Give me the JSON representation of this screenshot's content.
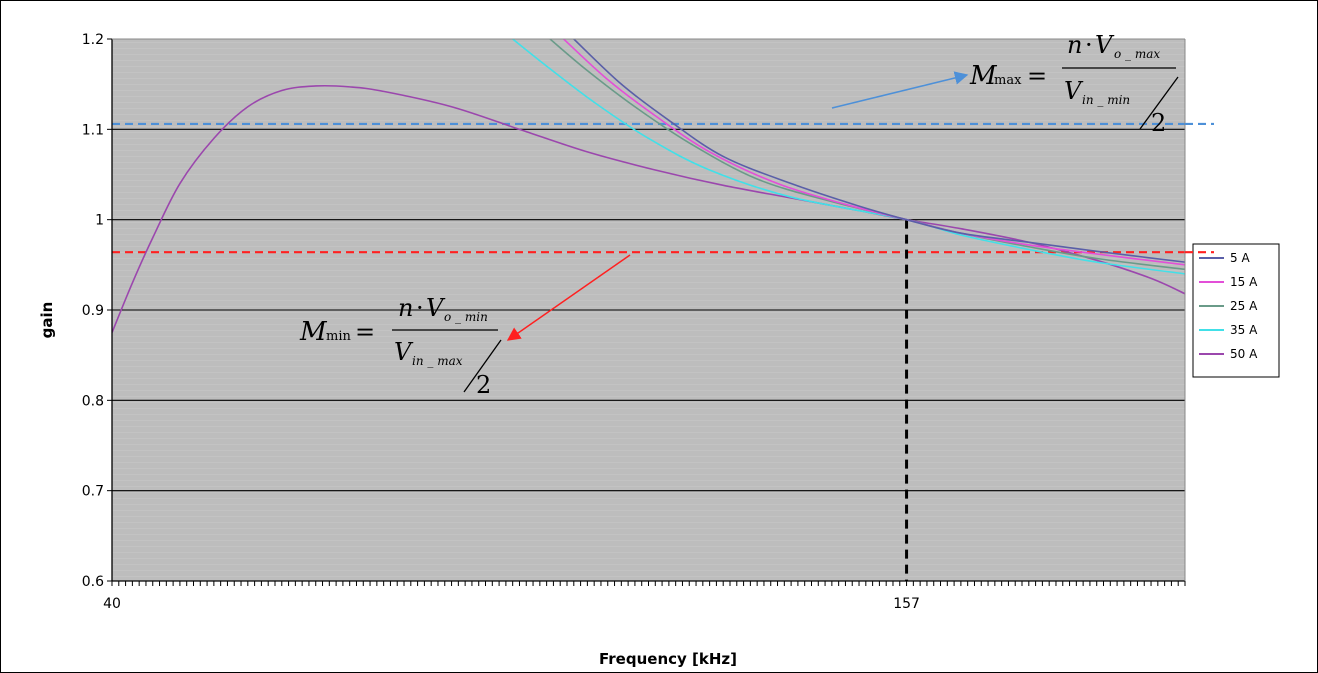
{
  "chart_data": {
    "type": "line",
    "xlabel": "Frequency [kHz]",
    "ylabel": "gain",
    "xlim": [
      40,
      198
    ],
    "ylim": [
      0.6,
      1.2
    ],
    "x_tick_labels": [
      {
        "value": 40,
        "label": "40"
      },
      {
        "value": 157,
        "label": "157"
      }
    ],
    "y_ticks": [
      0.6,
      0.7,
      0.8,
      0.9,
      1,
      1.1,
      1.2
    ],
    "y_tick_labels": [
      "0.6",
      "0.7",
      "0.8",
      "0.9",
      "1",
      "1.1",
      "1.2"
    ],
    "grid": true,
    "legend_position": "right",
    "series": [
      {
        "name": "5 A",
        "color": "#5a5fa8",
        "points": [
          [
            108,
            1.2
          ],
          [
            115,
            1.15
          ],
          [
            122,
            1.11
          ],
          [
            130,
            1.07
          ],
          [
            140,
            1.04
          ],
          [
            150,
            1.015
          ],
          [
            157,
            1.0
          ],
          [
            165,
            0.985
          ],
          [
            175,
            0.975
          ],
          [
            185,
            0.965
          ],
          [
            198,
            0.953
          ]
        ]
      },
      {
        "name": "15 A",
        "color": "#e34fd8",
        "points": [
          [
            106.5,
            1.2
          ],
          [
            113,
            1.155
          ],
          [
            120,
            1.115
          ],
          [
            128,
            1.075
          ],
          [
            138,
            1.04
          ],
          [
            148,
            1.017
          ],
          [
            157,
            1.0
          ],
          [
            165,
            0.985
          ],
          [
            175,
            0.972
          ],
          [
            185,
            0.962
          ],
          [
            198,
            0.95
          ]
        ]
      },
      {
        "name": "25 A",
        "color": "#6a9b89",
        "points": [
          [
            104.5,
            1.2
          ],
          [
            110,
            1.165
          ],
          [
            117,
            1.125
          ],
          [
            125,
            1.085
          ],
          [
            135,
            1.045
          ],
          [
            146,
            1.02
          ],
          [
            157,
            1.0
          ],
          [
            165,
            0.985
          ],
          [
            175,
            0.97
          ],
          [
            185,
            0.957
          ],
          [
            198,
            0.945
          ]
        ]
      },
      {
        "name": "35 A",
        "color": "#41e0e8",
        "points": [
          [
            99,
            1.2
          ],
          [
            104,
            1.17
          ],
          [
            111,
            1.13
          ],
          [
            119,
            1.09
          ],
          [
            128,
            1.055
          ],
          [
            140,
            1.025
          ],
          [
            157,
            1.0
          ],
          [
            165,
            0.983
          ],
          [
            175,
            0.967
          ],
          [
            185,
            0.953
          ],
          [
            198,
            0.94
          ]
        ]
      },
      {
        "name": "50 A",
        "color": "#9b47ad",
        "points": [
          [
            40,
            0.875
          ],
          [
            43,
            0.93
          ],
          [
            46,
            0.98
          ],
          [
            50,
            1.04
          ],
          [
            55,
            1.09
          ],
          [
            60,
            1.125
          ],
          [
            65,
            1.143
          ],
          [
            70,
            1.148
          ],
          [
            75,
            1.147
          ],
          [
            80,
            1.142
          ],
          [
            90,
            1.125
          ],
          [
            100,
            1.1
          ],
          [
            110,
            1.075
          ],
          [
            120,
            1.055
          ],
          [
            130,
            1.038
          ],
          [
            140,
            1.024
          ],
          [
            150,
            1.01
          ],
          [
            157,
            1.0
          ],
          [
            165,
            0.99
          ],
          [
            175,
            0.975
          ],
          [
            185,
            0.955
          ],
          [
            193,
            0.935
          ],
          [
            198,
            0.918
          ]
        ]
      }
    ],
    "reference_lines": [
      {
        "axis": "y",
        "value": 1.106,
        "color": "#4d90d8",
        "style": "dashed"
      },
      {
        "axis": "y",
        "value": 0.964,
        "color": "#ff2020",
        "style": "dashed"
      },
      {
        "axis": "x",
        "value": 157,
        "color": "#000000",
        "style": "dashed"
      }
    ],
    "annotations": [
      {
        "id": "mmax",
        "M": "M",
        "sub": "max",
        "num_n": "n",
        "num_dot": "·",
        "num_V": "V",
        "num_sub": "o _ max",
        "den_V": "V",
        "den_sub": "in _ min",
        "den_two": "2",
        "arrow_color": "#4d90d8"
      },
      {
        "id": "mmin",
        "M": "M",
        "sub": "min",
        "num_n": "n",
        "num_dot": "·",
        "num_V": "V",
        "num_sub": "o _ min",
        "den_V": "V",
        "den_sub": "in _ max",
        "den_two": "2",
        "arrow_color": "#ff2020"
      }
    ]
  }
}
